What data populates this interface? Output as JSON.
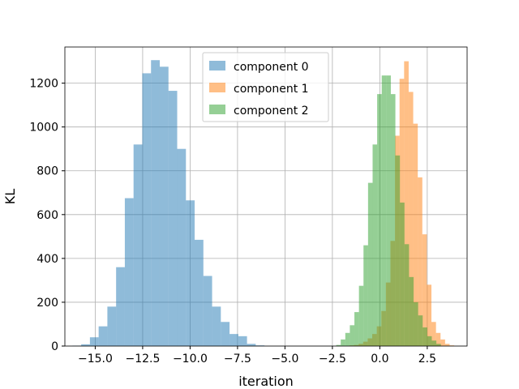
{
  "chart_data": {
    "type": "histogram",
    "title": "",
    "xlabel": "iteration",
    "ylabel": "KL",
    "xlim": [
      -16.6,
      4.6
    ],
    "ylim": [
      0,
      1365
    ],
    "x_ticks": [
      -15.0,
      -12.5,
      -10.0,
      -7.5,
      -5.0,
      -2.5,
      0.0,
      2.5
    ],
    "x_tick_labels": [
      "−15.0",
      "−12.5",
      "−10.0",
      "−7.5",
      "−5.0",
      "−2.5",
      "0.0",
      "2.5"
    ],
    "y_ticks": [
      0,
      200,
      400,
      600,
      800,
      1000,
      1200
    ],
    "y_tick_labels": [
      "0",
      "200",
      "400",
      "600",
      "800",
      "1000",
      "1200"
    ],
    "grid": true,
    "legend_position": "top-center",
    "series": [
      {
        "name": "component 0",
        "color": "#1f77b4",
        "alpha": 0.5,
        "bins": [
          {
            "x0": -16.2,
            "x1": -15.74,
            "count": 2
          },
          {
            "x0": -15.74,
            "x1": -15.28,
            "count": 8
          },
          {
            "x0": -15.28,
            "x1": -14.82,
            "count": 40
          },
          {
            "x0": -14.82,
            "x1": -14.36,
            "count": 90
          },
          {
            "x0": -14.36,
            "x1": -13.9,
            "count": 180
          },
          {
            "x0": -13.9,
            "x1": -13.44,
            "count": 360
          },
          {
            "x0": -13.44,
            "x1": -12.98,
            "count": 675
          },
          {
            "x0": -12.98,
            "x1": -12.52,
            "count": 920
          },
          {
            "x0": -12.52,
            "x1": -12.06,
            "count": 1245
          },
          {
            "x0": -12.06,
            "x1": -11.6,
            "count": 1305
          },
          {
            "x0": -11.6,
            "x1": -11.14,
            "count": 1275
          },
          {
            "x0": -11.14,
            "x1": -10.68,
            "count": 1165
          },
          {
            "x0": -10.68,
            "x1": -10.22,
            "count": 900
          },
          {
            "x0": -10.22,
            "x1": -9.76,
            "count": 665
          },
          {
            "x0": -9.76,
            "x1": -9.3,
            "count": 485
          },
          {
            "x0": -9.3,
            "x1": -8.84,
            "count": 320
          },
          {
            "x0": -8.84,
            "x1": -8.38,
            "count": 180
          },
          {
            "x0": -8.38,
            "x1": -7.92,
            "count": 110
          },
          {
            "x0": -7.92,
            "x1": -7.46,
            "count": 55
          },
          {
            "x0": -7.46,
            "x1": -7.0,
            "count": 45
          },
          {
            "x0": -7.0,
            "x1": -6.54,
            "count": 10
          },
          {
            "x0": -6.54,
            "x1": -6.08,
            "count": 3
          }
        ]
      },
      {
        "name": "component 1",
        "color": "#ff7f0e",
        "alpha": 0.5,
        "bins": [
          {
            "x0": -1.6,
            "x1": -1.36,
            "count": 3
          },
          {
            "x0": -1.36,
            "x1": -1.12,
            "count": 5
          },
          {
            "x0": -1.12,
            "x1": -0.88,
            "count": 10
          },
          {
            "x0": -0.88,
            "x1": -0.64,
            "count": 20
          },
          {
            "x0": -0.64,
            "x1": -0.4,
            "count": 35
          },
          {
            "x0": -0.4,
            "x1": -0.16,
            "count": 55
          },
          {
            "x0": -0.16,
            "x1": 0.08,
            "count": 90
          },
          {
            "x0": 0.08,
            "x1": 0.32,
            "count": 160
          },
          {
            "x0": 0.32,
            "x1": 0.56,
            "count": 290
          },
          {
            "x0": 0.56,
            "x1": 0.8,
            "count": 480
          },
          {
            "x0": 0.8,
            "x1": 1.04,
            "count": 960
          },
          {
            "x0": 1.04,
            "x1": 1.28,
            "count": 1220
          },
          {
            "x0": 1.28,
            "x1": 1.52,
            "count": 1300
          },
          {
            "x0": 1.52,
            "x1": 1.76,
            "count": 1160
          },
          {
            "x0": 1.76,
            "x1": 2.0,
            "count": 1015
          },
          {
            "x0": 2.0,
            "x1": 2.24,
            "count": 770
          },
          {
            "x0": 2.24,
            "x1": 2.48,
            "count": 510
          },
          {
            "x0": 2.48,
            "x1": 2.72,
            "count": 280
          },
          {
            "x0": 2.72,
            "x1": 2.96,
            "count": 110
          },
          {
            "x0": 2.96,
            "x1": 3.2,
            "count": 60
          },
          {
            "x0": 3.2,
            "x1": 3.44,
            "count": 30
          },
          {
            "x0": 3.44,
            "x1": 3.68,
            "count": 10
          },
          {
            "x0": 3.68,
            "x1": 3.92,
            "count": 3
          }
        ]
      },
      {
        "name": "component 2",
        "color": "#2ca02c",
        "alpha": 0.5,
        "bins": [
          {
            "x0": -2.3,
            "x1": -2.06,
            "count": 5
          },
          {
            "x0": -2.06,
            "x1": -1.82,
            "count": 30
          },
          {
            "x0": -1.82,
            "x1": -1.58,
            "count": 60
          },
          {
            "x0": -1.58,
            "x1": -1.34,
            "count": 95
          },
          {
            "x0": -1.34,
            "x1": -1.1,
            "count": 155
          },
          {
            "x0": -1.1,
            "x1": -0.86,
            "count": 275
          },
          {
            "x0": -0.86,
            "x1": -0.62,
            "count": 460
          },
          {
            "x0": -0.62,
            "x1": -0.38,
            "count": 745
          },
          {
            "x0": -0.38,
            "x1": -0.14,
            "count": 920
          },
          {
            "x0": -0.14,
            "x1": 0.1,
            "count": 1150
          },
          {
            "x0": 0.1,
            "x1": 0.34,
            "count": 1235
          },
          {
            "x0": 0.34,
            "x1": 0.58,
            "count": 1235
          },
          {
            "x0": 0.58,
            "x1": 0.82,
            "count": 1150
          },
          {
            "x0": 0.82,
            "x1": 1.06,
            "count": 870
          },
          {
            "x0": 1.06,
            "x1": 1.3,
            "count": 655
          },
          {
            "x0": 1.3,
            "x1": 1.54,
            "count": 465
          },
          {
            "x0": 1.54,
            "x1": 1.78,
            "count": 315
          },
          {
            "x0": 1.78,
            "x1": 2.02,
            "count": 200
          },
          {
            "x0": 2.02,
            "x1": 2.26,
            "count": 140
          },
          {
            "x0": 2.26,
            "x1": 2.5,
            "count": 85
          },
          {
            "x0": 2.5,
            "x1": 2.74,
            "count": 45
          },
          {
            "x0": 2.74,
            "x1": 2.98,
            "count": 25
          },
          {
            "x0": 2.98,
            "x1": 3.22,
            "count": 10
          }
        ]
      }
    ]
  }
}
